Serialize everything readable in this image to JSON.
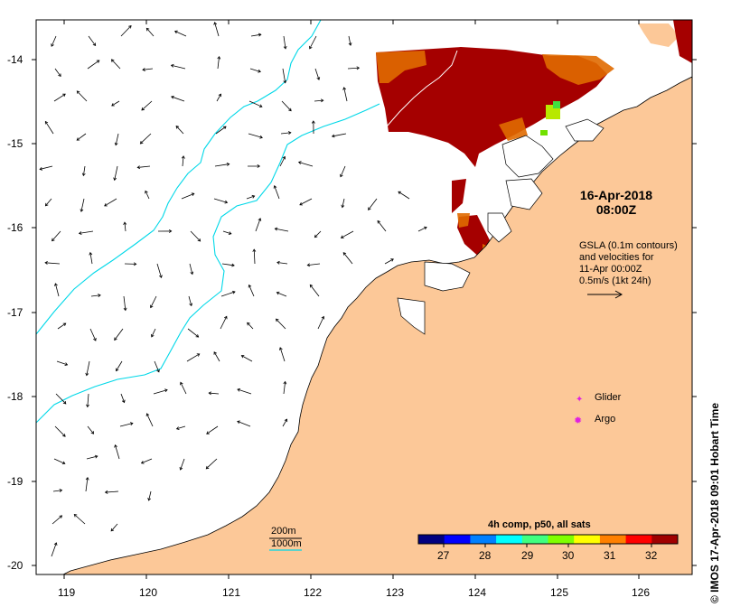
{
  "map": {
    "date_line1": "16-Apr-2018",
    "date_line2": "08:00Z",
    "info_lines": [
      "GSLA (0.1m contours)",
      "and velocities for",
      "11-Apr 00:00Z",
      "0.5m/s (1kt 24h)"
    ],
    "colorbar_title": "4h comp, p50, all sats",
    "colorbar_ticks": [
      "27",
      "28",
      "29",
      "30",
      "31",
      "32"
    ],
    "colorbar_colors": [
      "#000080",
      "#0000ff",
      "#0080ff",
      "#00ffff",
      "#40ff80",
      "#80ff00",
      "#ffff00",
      "#ff8000",
      "#ff0000",
      "#a00000"
    ],
    "legend": {
      "glider": "Glider",
      "argo": "Argo",
      "isobath_200": "200m",
      "isobath_1000": "1000m"
    },
    "credit": "IMOS 17-Apr-2018 09:01 Hobart Time",
    "copyright_symbol": "©",
    "lon_ticks": [
      "119",
      "120",
      "121",
      "122",
      "123",
      "124",
      "125",
      "126"
    ],
    "lat_ticks": [
      "-14",
      "-15",
      "-16",
      "-17",
      "-18",
      "-19",
      "-20"
    ],
    "colors": {
      "land": "#fcc898",
      "sst_hot": "#a50000",
      "sst_warm": "#e06a00",
      "isobath": "#00d8e8",
      "marker": "#e020e0"
    }
  }
}
